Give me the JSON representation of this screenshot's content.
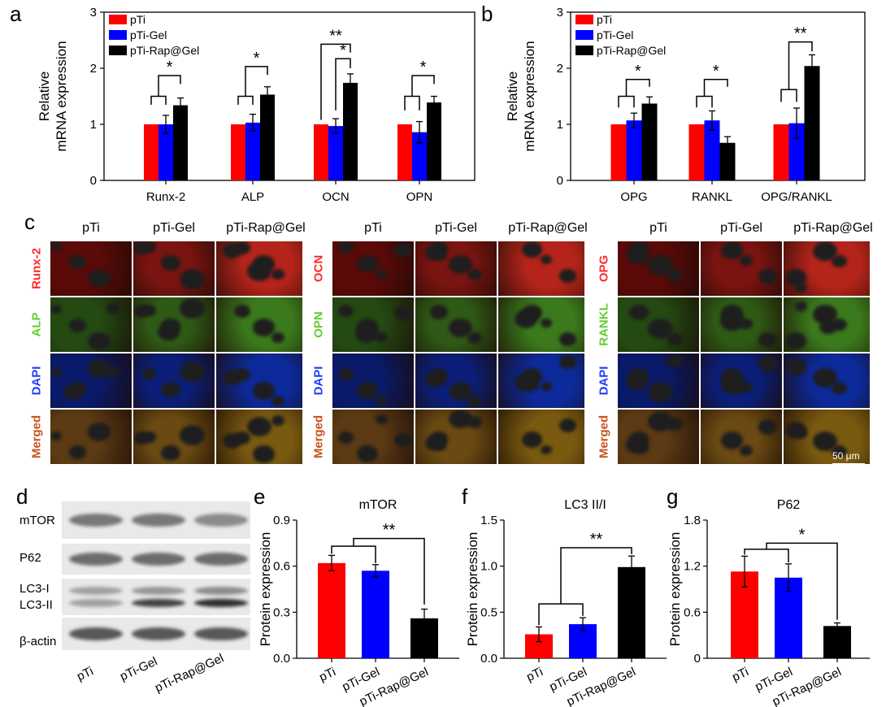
{
  "panels": {
    "a": "a",
    "b": "b",
    "c": "c",
    "d": "d",
    "e": "e",
    "f": "f",
    "g": "g"
  },
  "colors": {
    "pTi": "#ff0000",
    "pTi-Gel": "#0000ff",
    "pTi-Rap@Gel": "#000000"
  },
  "groups": [
    "pTi",
    "pTi-Gel",
    "pTi-Rap@Gel"
  ],
  "chart_data": [
    {
      "id": "a",
      "type": "bar",
      "ylabel": "Relative mRNA expression",
      "ylim": [
        0,
        3
      ],
      "yticks": [
        "0",
        "1",
        "2",
        "3"
      ],
      "categories": [
        "Runx-2",
        "ALP",
        "OCN",
        "OPN"
      ],
      "series": [
        {
          "name": "pTi",
          "values": [
            1.0,
            1.0,
            1.0,
            1.0
          ],
          "errors": [
            0,
            0,
            0,
            0
          ]
        },
        {
          "name": "pTi-Gel",
          "values": [
            1.0,
            1.03,
            0.97,
            0.86
          ],
          "errors": [
            0.16,
            0.15,
            0.13,
            0.19
          ]
        },
        {
          "name": "pTi-Rap@Gel",
          "values": [
            1.34,
            1.53,
            1.74,
            1.39
          ],
          "errors": [
            0.13,
            0.14,
            0.16,
            0.11
          ]
        }
      ],
      "legend_position": "top-left",
      "significance": [
        "*",
        "*",
        "*",
        "**",
        "*"
      ]
    },
    {
      "id": "b",
      "type": "bar",
      "ylabel": "Relative mRNA expression",
      "ylim": [
        0,
        3
      ],
      "yticks": [
        "0",
        "1",
        "2",
        "3"
      ],
      "categories": [
        "OPG",
        "RANKL",
        "OPG/RANKL"
      ],
      "series": [
        {
          "name": "pTi",
          "values": [
            1.0,
            1.0,
            1.0
          ],
          "errors": [
            0,
            0,
            0
          ]
        },
        {
          "name": "pTi-Gel",
          "values": [
            1.07,
            1.07,
            1.02
          ],
          "errors": [
            0.13,
            0.17,
            0.27
          ]
        },
        {
          "name": "pTi-Rap@Gel",
          "values": [
            1.37,
            0.67,
            2.04
          ],
          "errors": [
            0.12,
            0.11,
            0.2
          ]
        }
      ],
      "legend_position": "top-left",
      "significance": [
        "*",
        "*",
        "**"
      ]
    },
    {
      "id": "e",
      "type": "bar",
      "title": "mTOR",
      "ylabel": "Protein expression",
      "ylim": [
        0,
        0.9
      ],
      "yticks": [
        "0.0",
        "0.3",
        "0.6",
        "0.9"
      ],
      "categories": [
        "pTi",
        "pTi-Gel",
        "pTi-Rap@Gel"
      ],
      "values": [
        0.62,
        0.57,
        0.26
      ],
      "errors": [
        0.05,
        0.04,
        0.06
      ],
      "significance": [
        "**"
      ]
    },
    {
      "id": "f",
      "type": "bar",
      "title": "LC3 II/I",
      "ylabel": "Protein expression",
      "ylim": [
        0,
        1.5
      ],
      "yticks": [
        "0.0",
        "0.5",
        "1.0",
        "1.5"
      ],
      "categories": [
        "pTi",
        "pTi-Gel",
        "pTi-Rap@Gel"
      ],
      "values": [
        0.26,
        0.37,
        0.99
      ],
      "errors": [
        0.08,
        0.07,
        0.12
      ],
      "significance": [
        "**"
      ]
    },
    {
      "id": "g",
      "type": "bar",
      "title": "P62",
      "ylabel": "Protein expression",
      "ylim": [
        0,
        1.8
      ],
      "yticks": [
        "0",
        "0.6",
        "1.2",
        "1.8"
      ],
      "categories": [
        "pTi",
        "pTi-Gel",
        "pTi-Rap@Gel"
      ],
      "values": [
        1.13,
        1.05,
        0.42
      ],
      "errors": [
        0.2,
        0.18,
        0.04
      ],
      "significance": [
        "*"
      ]
    }
  ],
  "micrograph": {
    "column_headers": [
      "pTi",
      "pTi-Gel",
      "pTi-Rap@Gel"
    ],
    "blocks": [
      {
        "rows": [
          {
            "label": "Runx-2",
            "color": "#ff2a2a"
          },
          {
            "label": "ALP",
            "color": "#66cc33"
          },
          {
            "label": "DAPI",
            "color": "#1f3bff"
          },
          {
            "label": "Merged",
            "color": "#c8501c"
          }
        ]
      },
      {
        "rows": [
          {
            "label": "OCN",
            "color": "#ff2a2a"
          },
          {
            "label": "OPN",
            "color": "#66cc33"
          },
          {
            "label": "DAPI",
            "color": "#1f3bff"
          },
          {
            "label": "Merged",
            "color": "#c8501c"
          }
        ]
      },
      {
        "rows": [
          {
            "label": "OPG",
            "color": "#ff2a2a"
          },
          {
            "label": "RANKL",
            "color": "#66cc33"
          },
          {
            "label": "DAPI",
            "color": "#1f3bff"
          },
          {
            "label": "Merged",
            "color": "#c8501c"
          }
        ]
      }
    ],
    "scale_bar": "50 μm"
  },
  "western": {
    "rows": [
      "mTOR",
      "P62",
      "LC3-I",
      "LC3-II",
      "β-actin"
    ],
    "lanes": [
      "pTi",
      "pTi-Gel",
      "pTi-Rap@Gel"
    ]
  }
}
